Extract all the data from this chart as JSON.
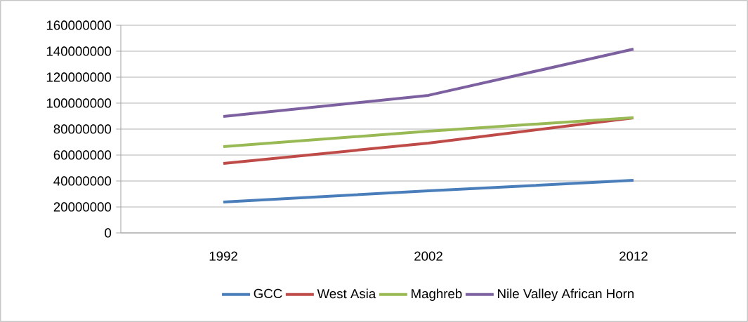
{
  "chart_data": {
    "type": "line",
    "categories": [
      "1992",
      "2002",
      "2012"
    ],
    "series": [
      {
        "name": "GCC",
        "color": "#4a7ebb",
        "values": [
          23800000,
          32400000,
          40500000
        ]
      },
      {
        "name": "West Asia",
        "color": "#be4b48",
        "values": [
          53500000,
          69200000,
          88600000
        ]
      },
      {
        "name": "Maghreb",
        "color": "#98b954",
        "values": [
          66500000,
          78400000,
          88800000
        ]
      },
      {
        "name": "Nile Valley African Horn",
        "color": "#7d60a0",
        "values": [
          89700000,
          106000000,
          141600000
        ]
      }
    ],
    "ylim": [
      0,
      160000000
    ],
    "yticks": [
      0,
      20000000,
      40000000,
      60000000,
      80000000,
      100000000,
      120000000,
      140000000,
      160000000
    ],
    "grid": "y",
    "legend": "bottom"
  }
}
